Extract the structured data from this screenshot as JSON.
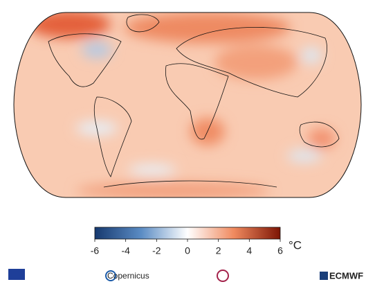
{
  "colorbar": {
    "range": [
      -6,
      6
    ],
    "ticks": [
      -6,
      -4,
      -2,
      0,
      2,
      4,
      6
    ],
    "unit": "°C",
    "colors": [
      "#16396f",
      "#5b8cc4",
      "#ffffff",
      "#f08a5f",
      "#7d1505"
    ]
  },
  "logos": {
    "copernicus": "Copernicus",
    "ecmwf": "ECMWF"
  }
}
